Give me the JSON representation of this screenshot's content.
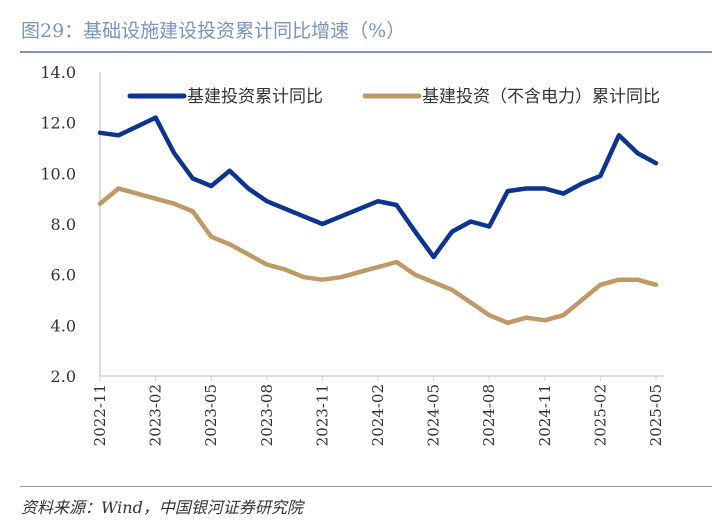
{
  "title": "图29：基础设施建设投资累计同比增速（%）",
  "source": "资料来源：Wind，中国银河证券研究院",
  "chart_data": {
    "type": "line",
    "title": "基础设施建设投资累计同比增速（%）",
    "xlabel": "",
    "ylabel": "",
    "ylim": [
      2.0,
      14.0
    ],
    "yticks": [
      "2.0",
      "4.0",
      "6.0",
      "8.0",
      "10.0",
      "12.0",
      "14.0"
    ],
    "x": [
      "2022-11",
      "2022-12",
      "2023-01",
      "2023-02",
      "2023-03",
      "2023-04",
      "2023-05",
      "2023-06",
      "2023-07",
      "2023-08",
      "2023-09",
      "2023-10",
      "2023-11",
      "2023-12",
      "2024-01",
      "2024-02",
      "2024-03",
      "2024-04",
      "2024-05",
      "2024-06",
      "2024-07",
      "2024-08",
      "2024-09",
      "2024-10",
      "2024-11",
      "2024-12",
      "2025-01",
      "2025-02",
      "2025-03",
      "2025-04",
      "2025-05"
    ],
    "xtick_labels": [
      "2022-11",
      "2023-02",
      "2023-05",
      "2023-08",
      "2023-11",
      "2024-02",
      "2024-05",
      "2024-08",
      "2024-11",
      "2025-02",
      "2025-05"
    ],
    "legend_position": "top",
    "grid": false,
    "series": [
      {
        "name": "基建投资累计同比",
        "color": "#0d3491",
        "values": [
          11.6,
          11.5,
          11.85,
          12.2,
          10.8,
          9.8,
          9.5,
          10.1,
          9.4,
          8.9,
          8.6,
          8.3,
          8.0,
          8.3,
          8.6,
          8.9,
          8.75,
          7.7,
          6.7,
          7.7,
          8.1,
          7.9,
          9.3,
          9.4,
          9.4,
          9.2,
          9.6,
          9.9,
          11.5,
          10.8,
          10.4
        ]
      },
      {
        "name": "基建投资（不含电力）累计同比",
        "color": "#bf9a66",
        "values": [
          8.8,
          9.4,
          9.2,
          9.0,
          8.8,
          8.5,
          7.5,
          7.2,
          6.8,
          6.4,
          6.2,
          5.9,
          5.8,
          5.9,
          6.1,
          6.3,
          6.5,
          6.0,
          5.7,
          5.4,
          4.9,
          4.4,
          4.1,
          4.3,
          4.2,
          4.4,
          5.0,
          5.6,
          5.8,
          5.8,
          5.6
        ]
      }
    ]
  }
}
